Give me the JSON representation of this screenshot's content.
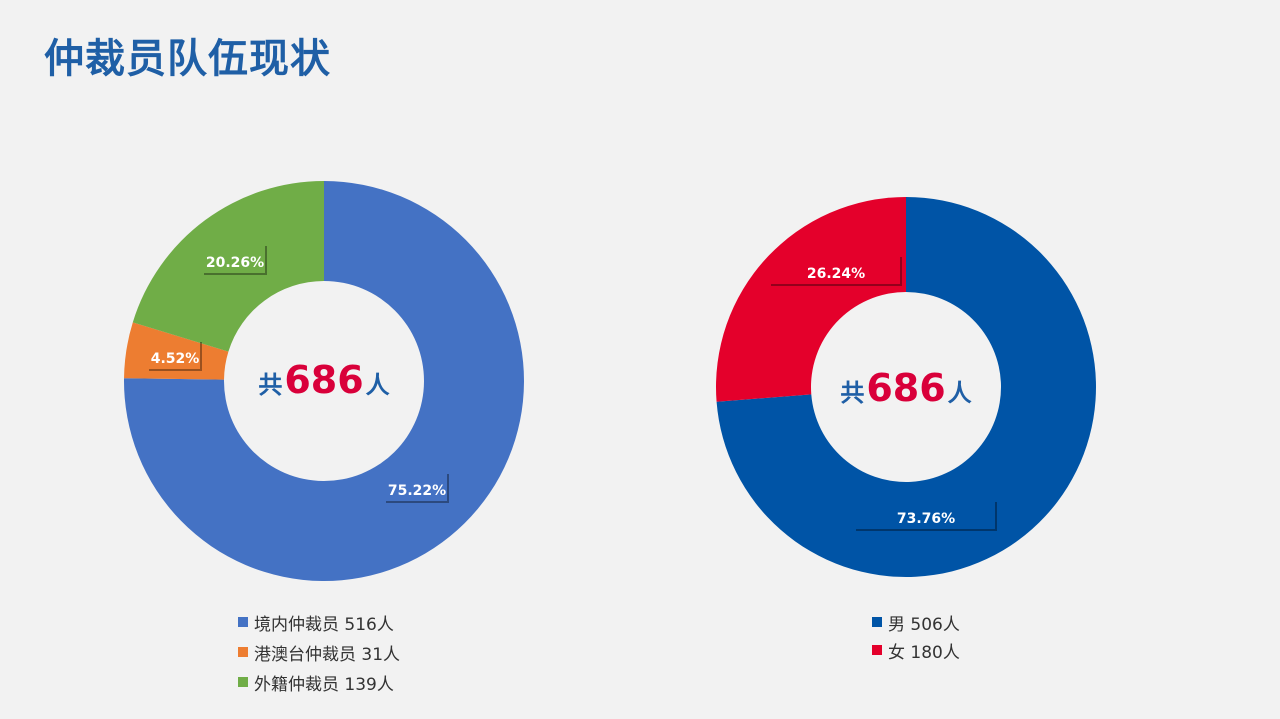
{
  "page": {
    "title": "仲裁员队伍现状"
  },
  "chart_data": [
    {
      "type": "pie",
      "donut": true,
      "center": {
        "prefix": "共",
        "total": "686",
        "suffix": "人"
      },
      "slices": [
        {
          "name": "境内仲裁员",
          "value": 516,
          "percent": "75.22%",
          "count_label": "516人",
          "color": "#4472c4"
        },
        {
          "name": "港澳台仲裁员",
          "value": 31,
          "percent": "4.52%",
          "count_label": "31人",
          "color": "#ed7d31"
        },
        {
          "name": "外籍仲裁员",
          "value": 139,
          "percent": "20.26%",
          "count_label": "139人",
          "color": "#70ad47"
        }
      ],
      "legend": "bottom"
    },
    {
      "type": "pie",
      "donut": true,
      "center": {
        "prefix": "共",
        "total": "686",
        "suffix": "人"
      },
      "slices": [
        {
          "name": "男",
          "value": 506,
          "percent": "73.76%",
          "count_label": "506人",
          "color": "#0054a6"
        },
        {
          "name": "女",
          "value": 180,
          "percent": "26.24%",
          "count_label": "180人",
          "color": "#e4002b"
        }
      ],
      "legend": "bottom"
    }
  ]
}
